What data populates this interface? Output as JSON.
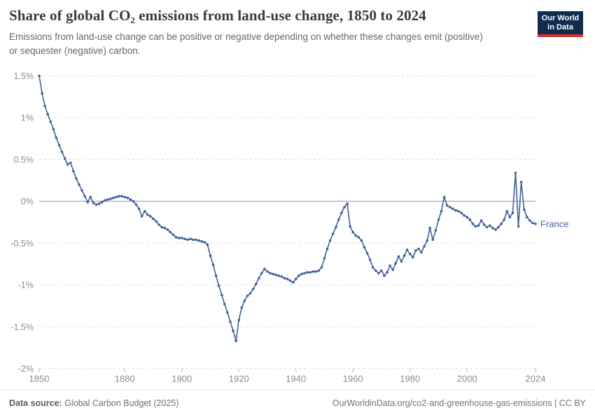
{
  "header": {
    "title": "Share of global CO₂ emissions from land-use change, 1850 to 2024",
    "subtitle": "Emissions from land-use change can be positive or negative depending on whether these changes emit (positive) or sequester (negative) carbon.",
    "logo": {
      "line1": "Our World",
      "line2": "in Data",
      "bg_color": "#102d50",
      "accent_color": "#d7352c"
    }
  },
  "chart_data": {
    "type": "line",
    "title": "Share of global CO₂ emissions from land-use change, 1850 to 2024",
    "xlabel": "",
    "ylabel": "",
    "xlim": [
      1850,
      2024
    ],
    "ylim": [
      -2,
      1.5
    ],
    "grid": "horizontal-dashed",
    "zero_line": true,
    "legend_position": "end-of-line-label",
    "x_ticks": [
      1850,
      1880,
      1900,
      1920,
      1940,
      1960,
      1980,
      2000,
      2024
    ],
    "y_ticks": [
      {
        "value": 1.5,
        "label": "1.5%"
      },
      {
        "value": 1,
        "label": "1%"
      },
      {
        "value": 0.5,
        "label": "0.5%"
      },
      {
        "value": 0,
        "label": "0%"
      },
      {
        "value": -0.5,
        "label": "-0.5%"
      },
      {
        "value": -1,
        "label": "-1%"
      },
      {
        "value": -1.5,
        "label": "-1.5%"
      },
      {
        "value": -2,
        "label": "-2%"
      }
    ],
    "series": [
      {
        "name": "France",
        "color": "#40619b",
        "unit": "%",
        "x": [
          1850,
          1851,
          1852,
          1853,
          1854,
          1855,
          1856,
          1857,
          1858,
          1859,
          1860,
          1861,
          1862,
          1863,
          1864,
          1865,
          1866,
          1867,
          1868,
          1869,
          1870,
          1871,
          1872,
          1873,
          1874,
          1875,
          1876,
          1877,
          1878,
          1879,
          1880,
          1881,
          1882,
          1883,
          1884,
          1885,
          1886,
          1887,
          1888,
          1889,
          1890,
          1891,
          1892,
          1893,
          1894,
          1895,
          1896,
          1897,
          1898,
          1899,
          1900,
          1901,
          1902,
          1903,
          1904,
          1905,
          1906,
          1907,
          1908,
          1909,
          1910,
          1911,
          1912,
          1913,
          1914,
          1915,
          1916,
          1917,
          1918,
          1919,
          1920,
          1921,
          1922,
          1923,
          1924,
          1925,
          1926,
          1927,
          1928,
          1929,
          1930,
          1931,
          1932,
          1933,
          1934,
          1935,
          1936,
          1937,
          1938,
          1939,
          1940,
          1941,
          1942,
          1943,
          1944,
          1945,
          1946,
          1947,
          1948,
          1949,
          1950,
          1951,
          1952,
          1953,
          1954,
          1955,
          1956,
          1957,
          1958,
          1959,
          1960,
          1961,
          1962,
          1963,
          1964,
          1965,
          1966,
          1967,
          1968,
          1969,
          1970,
          1971,
          1972,
          1973,
          1974,
          1975,
          1976,
          1977,
          1978,
          1979,
          1980,
          1981,
          1982,
          1983,
          1984,
          1985,
          1986,
          1987,
          1988,
          1989,
          1990,
          1991,
          1992,
          1993,
          1994,
          1995,
          1996,
          1997,
          1998,
          1999,
          2000,
          2001,
          2002,
          2003,
          2004,
          2005,
          2006,
          2007,
          2008,
          2009,
          2010,
          2011,
          2012,
          2013,
          2014,
          2015,
          2016,
          2017,
          2018,
          2019,
          2020,
          2021,
          2022,
          2023,
          2024
        ],
        "values": [
          1.5,
          1.29,
          1.14,
          1.04,
          0.95,
          0.86,
          0.76,
          0.67,
          0.59,
          0.51,
          0.44,
          0.46,
          0.36,
          0.27,
          0.2,
          0.13,
          0.06,
          -0.01,
          0.05,
          -0.02,
          -0.04,
          -0.03,
          -0.01,
          0.01,
          0.02,
          0.03,
          0.04,
          0.05,
          0.06,
          0.06,
          0.05,
          0.04,
          0.02,
          0.0,
          -0.04,
          -0.09,
          -0.18,
          -0.12,
          -0.16,
          -0.18,
          -0.21,
          -0.24,
          -0.28,
          -0.31,
          -0.32,
          -0.34,
          -0.37,
          -0.4,
          -0.43,
          -0.44,
          -0.44,
          -0.45,
          -0.46,
          -0.45,
          -0.46,
          -0.46,
          -0.47,
          -0.48,
          -0.49,
          -0.52,
          -0.65,
          -0.76,
          -0.89,
          -1.01,
          -1.12,
          -1.23,
          -1.33,
          -1.44,
          -1.55,
          -1.67,
          -1.42,
          -1.27,
          -1.19,
          -1.13,
          -1.1,
          -1.05,
          -0.99,
          -0.92,
          -0.86,
          -0.81,
          -0.84,
          -0.86,
          -0.87,
          -0.88,
          -0.89,
          -0.9,
          -0.92,
          -0.93,
          -0.95,
          -0.97,
          -0.93,
          -0.89,
          -0.87,
          -0.86,
          -0.85,
          -0.85,
          -0.84,
          -0.84,
          -0.83,
          -0.79,
          -0.68,
          -0.57,
          -0.47,
          -0.39,
          -0.31,
          -0.22,
          -0.14,
          -0.07,
          -0.03,
          -0.3,
          -0.37,
          -0.41,
          -0.43,
          -0.47,
          -0.55,
          -0.62,
          -0.7,
          -0.79,
          -0.83,
          -0.86,
          -0.83,
          -0.89,
          -0.85,
          -0.77,
          -0.82,
          -0.74,
          -0.66,
          -0.72,
          -0.65,
          -0.58,
          -0.63,
          -0.67,
          -0.59,
          -0.57,
          -0.61,
          -0.54,
          -0.47,
          -0.32,
          -0.46,
          -0.35,
          -0.22,
          -0.12,
          0.05,
          -0.05,
          -0.07,
          -0.09,
          -0.11,
          -0.12,
          -0.14,
          -0.17,
          -0.19,
          -0.22,
          -0.27,
          -0.3,
          -0.29,
          -0.23,
          -0.28,
          -0.31,
          -0.29,
          -0.32,
          -0.34,
          -0.31,
          -0.27,
          -0.22,
          -0.12,
          -0.19,
          -0.14,
          0.34,
          -0.3,
          0.23,
          -0.1,
          -0.19,
          -0.23,
          -0.26,
          -0.27
        ]
      }
    ]
  },
  "colors": {
    "line": "#40619b",
    "gridline": "#dcdcdc",
    "zero_line": "#a8a8a8",
    "axis_text": "#8c8c8c",
    "tick_mark": "#b8b8b8"
  },
  "footer": {
    "source_label": "Data source:",
    "source_text": " Global Carbon Budget (2025)",
    "credit": "OurWorldinData.org/co2-and-greenhouse-gas-emissions | CC BY"
  }
}
